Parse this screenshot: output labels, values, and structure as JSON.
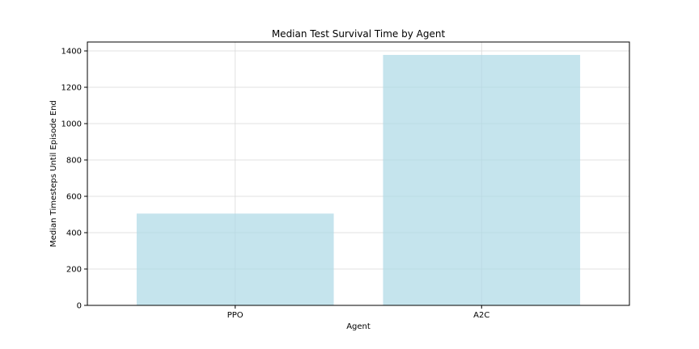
{
  "chart_data": {
    "type": "bar",
    "title": "Median Test Survival Time by Agent",
    "xlabel": "Agent",
    "ylabel": "Median Timesteps Until Episode End",
    "categories": [
      "PPO",
      "A2C"
    ],
    "values": [
      505,
      1378
    ],
    "ylim": [
      0,
      1449
    ],
    "yticks": [
      0,
      200,
      400,
      600,
      800,
      1000,
      1200,
      1400
    ],
    "grid": true,
    "colors": {
      "bar": "#add8e6",
      "grid": "#d9d9d9",
      "axis": "#000000"
    }
  }
}
